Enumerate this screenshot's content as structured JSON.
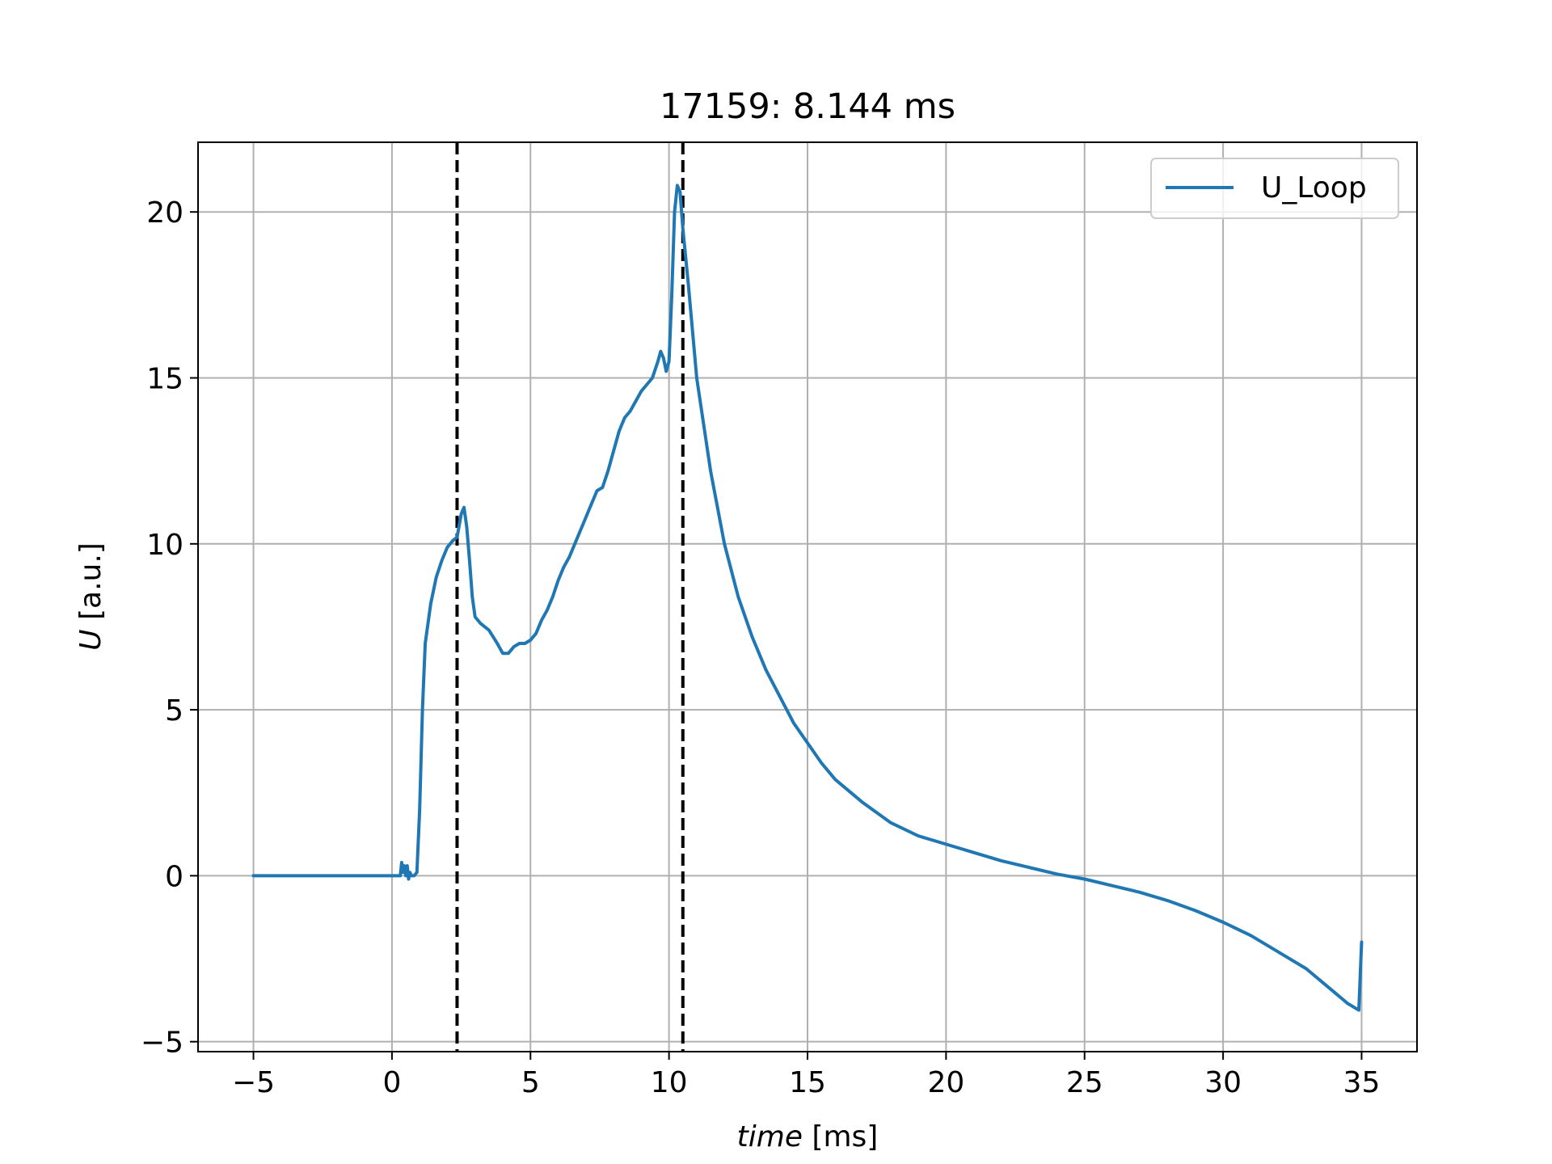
{
  "chart_data": {
    "type": "line",
    "title": "17159: 8.144 ms",
    "xlabel": {
      "italic": "time",
      "unit": " [ms]"
    },
    "ylabel": {
      "italic": "U",
      "unit": " [a.u.]"
    },
    "xlim": [
      -7,
      37
    ],
    "ylim": [
      -5.3,
      22.1
    ],
    "xticks": [
      -5,
      0,
      5,
      10,
      15,
      20,
      25,
      30,
      35
    ],
    "xtick_labels": [
      "−5",
      "0",
      "5",
      "10",
      "15",
      "20",
      "25",
      "30",
      "35"
    ],
    "yticks": [
      -5,
      0,
      5,
      10,
      15,
      20
    ],
    "ytick_labels": [
      "−5",
      "0",
      "5",
      "10",
      "15",
      "20"
    ],
    "grid": true,
    "legend_position": "top-right",
    "vlines": [
      2.35,
      10.5
    ],
    "series": [
      {
        "name": "U_Loop",
        "color": "#1f77b4",
        "x": [
          -5,
          0,
          0.3,
          0.35,
          0.4,
          0.45,
          0.5,
          0.55,
          0.6,
          0.65,
          0.7,
          0.8,
          0.9,
          1.0,
          1.1,
          1.2,
          1.4,
          1.6,
          1.8,
          2.0,
          2.2,
          2.35,
          2.5,
          2.6,
          2.7,
          2.8,
          2.9,
          3.0,
          3.2,
          3.5,
          3.8,
          4.0,
          4.2,
          4.4,
          4.6,
          4.8,
          5.0,
          5.2,
          5.4,
          5.6,
          5.8,
          6.0,
          6.2,
          6.4,
          6.6,
          6.8,
          7.0,
          7.2,
          7.4,
          7.6,
          7.8,
          8.0,
          8.2,
          8.4,
          8.6,
          8.8,
          9.0,
          9.2,
          9.4,
          9.6,
          9.7,
          9.8,
          9.9,
          10.0,
          10.1,
          10.2,
          10.3,
          10.4,
          10.5,
          10.7,
          11.0,
          11.5,
          12.0,
          12.5,
          13.0,
          13.5,
          14.0,
          14.5,
          15.0,
          15.5,
          16.0,
          17.0,
          18.0,
          19.0,
          20.0,
          21.0,
          22.0,
          23.0,
          24.0,
          25.0,
          26.0,
          27.0,
          28.0,
          29.0,
          30.0,
          31.0,
          32.0,
          33.0,
          34.0,
          34.5,
          34.9,
          35.0
        ],
        "y": [
          0,
          0,
          0,
          0.4,
          0.1,
          0.3,
          0,
          0.3,
          -0.1,
          0.1,
          0,
          0,
          0.1,
          2.0,
          5.0,
          7.0,
          8.2,
          9.0,
          9.5,
          9.9,
          10.1,
          10.2,
          10.9,
          11.1,
          10.5,
          9.5,
          8.4,
          7.8,
          7.6,
          7.4,
          7.0,
          6.7,
          6.7,
          6.9,
          7.0,
          7.0,
          7.1,
          7.3,
          7.7,
          8.0,
          8.4,
          8.9,
          9.3,
          9.6,
          10.0,
          10.4,
          10.8,
          11.2,
          11.6,
          11.7,
          12.2,
          12.8,
          13.4,
          13.8,
          14.0,
          14.3,
          14.6,
          14.8,
          15.0,
          15.5,
          15.8,
          15.6,
          15.2,
          15.5,
          17.5,
          20.0,
          20.8,
          20.6,
          19.5,
          17.8,
          15.0,
          12.2,
          10.0,
          8.4,
          7.2,
          6.2,
          5.4,
          4.6,
          4.0,
          3.4,
          2.9,
          2.2,
          1.6,
          1.2,
          0.95,
          0.7,
          0.45,
          0.25,
          0.05,
          -0.1,
          -0.3,
          -0.5,
          -0.75,
          -1.05,
          -1.4,
          -1.8,
          -2.3,
          -2.8,
          -3.5,
          -3.85,
          -4.05,
          -2.0
        ]
      }
    ]
  }
}
